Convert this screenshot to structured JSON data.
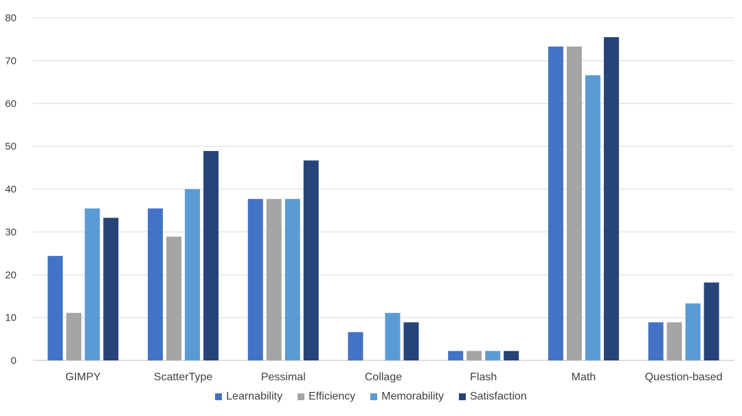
{
  "chart_data": {
    "type": "bar",
    "title": "",
    "xlabel": "",
    "ylabel": "",
    "ylim": [
      0,
      80
    ],
    "yticks": [
      0,
      10,
      20,
      30,
      40,
      50,
      60,
      70,
      80
    ],
    "grid": true,
    "legend_position": "bottom",
    "categories": [
      "GIMPY",
      "ScatterType",
      "Pessimal",
      "Collage",
      "Flash",
      "Math",
      "Question-based"
    ],
    "series": [
      {
        "name": "Learnability",
        "color": "#4472C4",
        "values": [
          24.4,
          35.5,
          37.7,
          6.6,
          2.2,
          73.3,
          8.9
        ]
      },
      {
        "name": "Efficiency",
        "color": "#A5A5A5",
        "values": [
          11.1,
          28.9,
          37.7,
          0,
          2.2,
          73.3,
          8.9
        ]
      },
      {
        "name": "Memorability",
        "color": "#5B9BD5",
        "values": [
          35.5,
          40.0,
          37.7,
          11.1,
          2.2,
          66.6,
          13.3
        ]
      },
      {
        "name": "Satisfaction",
        "color": "#264478",
        "values": [
          33.3,
          48.9,
          46.7,
          8.9,
          2.2,
          75.5,
          18.2
        ]
      }
    ]
  }
}
